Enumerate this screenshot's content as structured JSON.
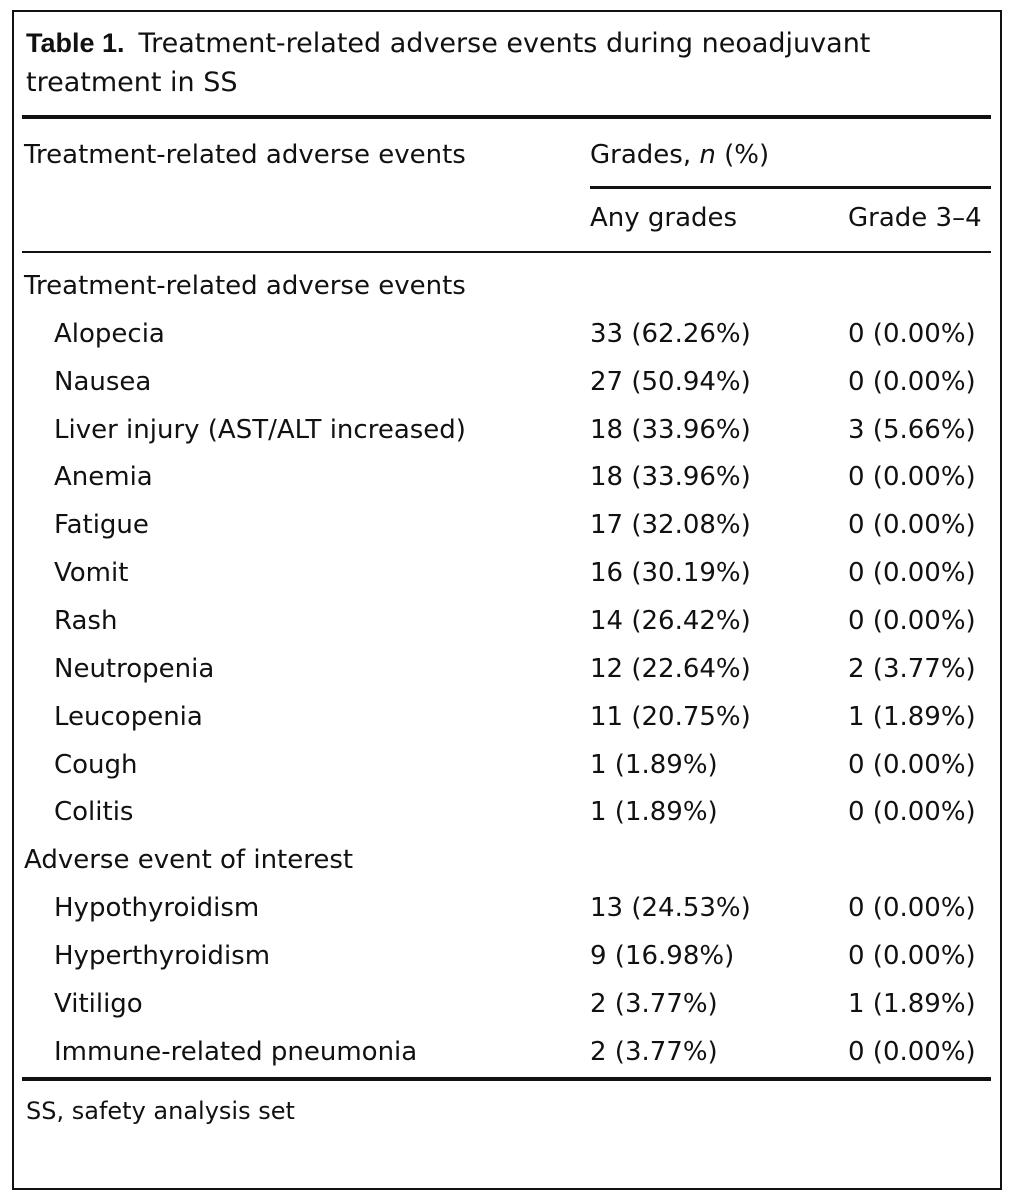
{
  "table": {
    "label": "Table 1.",
    "title": "Treatment-related adverse events during neoadjuvant treatment in SS",
    "header": {
      "event_column": "Treatment-related adverse events",
      "group": [
        "Grades,",
        "n",
        "(%)"
      ],
      "columns": [
        "Any grades",
        "Grade 3–4"
      ]
    },
    "sections": [
      {
        "label": "Treatment-related adverse events",
        "rows": [
          [
            "Alopecia",
            "33 (62.26%)",
            "0 (0.00%)"
          ],
          [
            "Nausea",
            "27 (50.94%)",
            "0 (0.00%)"
          ],
          [
            "Liver injury (AST/ALT increased)",
            "18 (33.96%)",
            "3 (5.66%)"
          ],
          [
            "Anemia",
            "18 (33.96%)",
            "0 (0.00%)"
          ],
          [
            "Fatigue",
            "17 (32.08%)",
            "0 (0.00%)"
          ],
          [
            "Vomit",
            "16 (30.19%)",
            "0 (0.00%)"
          ],
          [
            "Rash",
            "14 (26.42%)",
            "0 (0.00%)"
          ],
          [
            "Neutropenia",
            "12 (22.64%)",
            "2 (3.77%)"
          ],
          [
            "Leucopenia",
            "11 (20.75%)",
            "1 (1.89%)"
          ],
          [
            "Cough",
            "1 (1.89%)",
            "0 (0.00%)"
          ],
          [
            "Colitis",
            "1 (1.89%)",
            "0 (0.00%)"
          ]
        ]
      },
      {
        "label": "Adverse event of interest",
        "rows": [
          [
            "Hypothyroidism",
            "13 (24.53%)",
            "0 (0.00%)"
          ],
          [
            "Hyperthyroidism",
            "9 (16.98%)",
            "0 (0.00%)"
          ],
          [
            "Vitiligo",
            "2 (3.77%)",
            "1 (1.89%)"
          ],
          [
            "Immune-related pneumonia",
            "2 (3.77%)",
            "0 (0.00%)"
          ]
        ]
      }
    ],
    "footnote": "SS, safety analysis set"
  }
}
